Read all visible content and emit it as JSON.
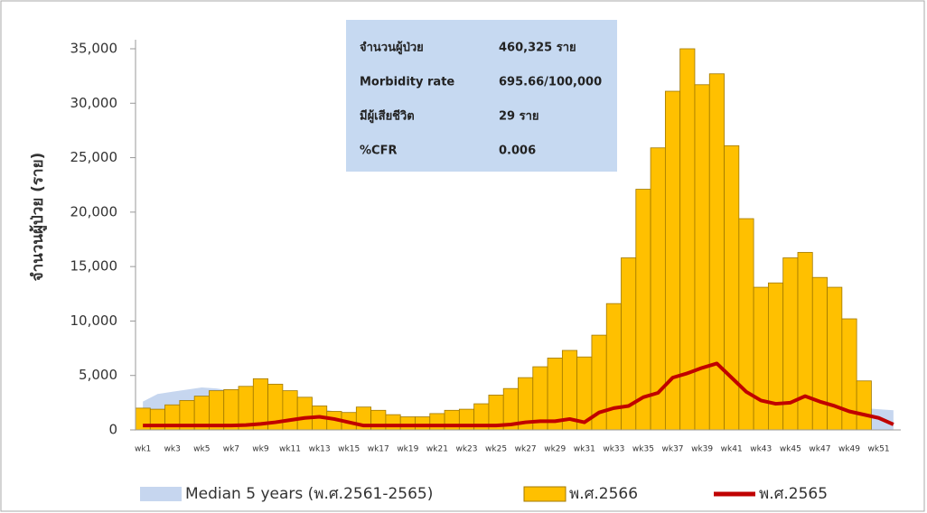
{
  "chart_data": {
    "type": "bar",
    "y_label": "จำนวนผู้ป่วย (ราย)",
    "categories": [
      "wk1",
      null,
      "wk3",
      null,
      "wk5",
      null,
      "wk7",
      null,
      "wk9",
      null,
      "wk11",
      null,
      "wk13",
      null,
      "wk15",
      null,
      "wk17",
      null,
      "wk19",
      null,
      "wk21",
      null,
      "wk23",
      null,
      "wk25",
      null,
      "wk27",
      null,
      "wk29",
      null,
      "wk31",
      null,
      "wk33",
      null,
      "wk35",
      null,
      "wk37",
      null,
      "wk39",
      null,
      "wk41",
      null,
      "wk43",
      null,
      "wk45",
      null,
      "wk47",
      null,
      "wk49",
      null,
      "wk51",
      null
    ],
    "series": [
      {
        "name": "Median 5 years (พ.ศ.2561-2565)",
        "type": "area",
        "color": "#c6d6ef",
        "values": [
          2600,
          3300,
          3500,
          3700,
          3900,
          3800,
          3600,
          3400,
          3200,
          2900,
          2600,
          2300,
          2000,
          1700,
          1500,
          1300,
          1200,
          1100,
          1000,
          1000,
          1000,
          1100,
          1200,
          1300,
          1500,
          1700,
          2000,
          2300,
          2600,
          2900,
          3100,
          3300,
          3500,
          3700,
          3800,
          3900,
          3900,
          3800,
          3700,
          3500,
          3300,
          3000,
          2800,
          2600,
          2500,
          2400,
          2300,
          2200,
          2100,
          2000,
          1900,
          1800
        ]
      },
      {
        "name": "พ.ศ.2566",
        "type": "bar",
        "color": "#ffc000",
        "values": [
          2000,
          1900,
          2300,
          2700,
          3100,
          3600,
          3700,
          4000,
          4700,
          4200,
          3600,
          3000,
          2200,
          1700,
          1600,
          2100,
          1800,
          1400,
          1200,
          1200,
          1500,
          1800,
          1900,
          2400,
          3200,
          3800,
          4800,
          5800,
          6600,
          7300,
          6700,
          8700,
          11600,
          15800,
          22100,
          25900,
          31100,
          35000,
          31700,
          32700,
          26100,
          19400,
          13100,
          13500,
          15800,
          16300,
          14000,
          13100,
          10200,
          4500,
          null,
          null
        ]
      },
      {
        "name": "พ.ศ.2565",
        "type": "line",
        "color": "#c00000",
        "values": [
          400,
          400,
          400,
          400,
          400,
          400,
          400,
          450,
          550,
          700,
          900,
          1100,
          1200,
          1000,
          700,
          400,
          400,
          400,
          400,
          400,
          400,
          400,
          400,
          400,
          400,
          500,
          700,
          800,
          800,
          1000,
          700,
          1600,
          2000,
          2200,
          3000,
          3400,
          4800,
          5200,
          5700,
          6100,
          4800,
          3500,
          2700,
          2400,
          2500,
          3100,
          2600,
          2200,
          1700,
          1400,
          1100,
          500
        ]
      }
    ],
    "ylim": [
      0,
      35000
    ],
    "yticks": [
      0,
      {
        "value": 5000,
        "label": "5,000"
      },
      {
        "value": 10000,
        "label": "10,000"
      },
      {
        "value": 15000,
        "label": "15,000"
      },
      {
        "value": 20000,
        "label": "20,000"
      },
      {
        "value": 25000,
        "label": "25,000"
      },
      {
        "value": 30000,
        "label": "30,000"
      },
      {
        "value": 35000,
        "label": "35,000"
      }
    ],
    "info_box": [
      [
        "จำนวนผู้ป่วย",
        "460,325 ราย"
      ],
      [
        "Morbidity rate",
        "695.66/100,000"
      ],
      [
        "มีผู้เสียชีวิต",
        "29 ราย"
      ],
      [
        "%CFR",
        "0.006"
      ]
    ],
    "legend": "bottom"
  }
}
